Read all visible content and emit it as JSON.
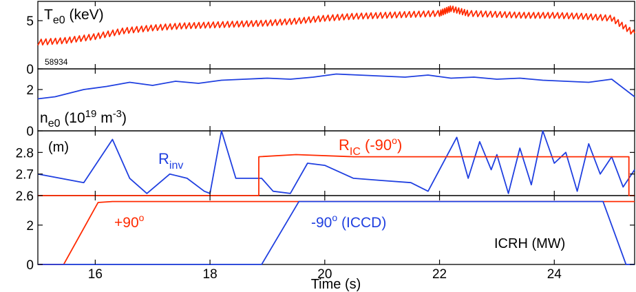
{
  "chart_data": [
    {
      "type": "line",
      "panel": "Te0",
      "xlim": [
        15,
        25.4
      ],
      "ylim": [
        0,
        7
      ],
      "yticks": [
        0,
        5
      ],
      "label_main": "T",
      "label_sub": "e0",
      "label_unit": " (keV)",
      "shot_label": "58934",
      "series": [
        {
          "color": "#ff2a00",
          "x": [
            15.0,
            15.5,
            16.0,
            16.5,
            17.0,
            17.5,
            18.0,
            18.5,
            19.0,
            19.5,
            20.0,
            20.5,
            21.0,
            21.5,
            22.0,
            22.2,
            22.5,
            23.0,
            23.5,
            24.0,
            24.5,
            25.0,
            25.4
          ],
          "y": [
            2.8,
            3.0,
            3.4,
            4.0,
            4.3,
            4.5,
            4.6,
            4.7,
            4.8,
            5.0,
            5.3,
            5.5,
            5.6,
            5.7,
            5.8,
            6.3,
            5.8,
            5.7,
            5.6,
            5.6,
            5.5,
            5.3,
            3.7
          ]
        }
      ]
    },
    {
      "type": "line",
      "panel": "ne0",
      "xlim": [
        15,
        25.4
      ],
      "ylim": [
        0,
        3
      ],
      "yticks": [
        0,
        2
      ],
      "label_main": "n",
      "label_sub": "e0",
      "label_unit_a": " (10",
      "label_sup1": "19",
      "label_unit_b": " m",
      "label_sup2": "-3",
      "label_unit_c": ")",
      "series": [
        {
          "color": "#1f3fe0",
          "x": [
            15.0,
            15.3,
            15.8,
            16.2,
            16.6,
            17.0,
            17.4,
            17.8,
            18.2,
            18.6,
            19.0,
            19.4,
            19.8,
            20.2,
            20.6,
            21.0,
            21.4,
            21.8,
            22.2,
            22.6,
            23.0,
            23.4,
            23.8,
            24.2,
            24.6,
            25.0,
            25.4
          ],
          "y": [
            1.55,
            1.65,
            2.0,
            2.15,
            2.35,
            2.2,
            2.4,
            2.3,
            2.45,
            2.5,
            2.55,
            2.5,
            2.6,
            2.75,
            2.7,
            2.65,
            2.6,
            2.7,
            2.55,
            2.6,
            2.5,
            2.55,
            2.45,
            2.4,
            2.35,
            2.5,
            1.65
          ]
        }
      ]
    },
    {
      "type": "line",
      "panel": "R",
      "xlim": [
        15,
        25.4
      ],
      "ylim": [
        2.6,
        2.9
      ],
      "yticks": [
        2.6,
        2.7,
        2.8
      ],
      "ytick_labels": [
        "2.6",
        "2.7",
        "2.8"
      ],
      "label_unit": "(m)",
      "label_rinv_main": "R",
      "label_rinv_sub": "inv",
      "label_ric_main": "R",
      "label_ric_sub": "IC",
      "label_ric_rest": " (-90",
      "label_ric_deg": "o",
      "label_ric_close": ")",
      "series": [
        {
          "name": "R_inv",
          "color": "#1f3fe0",
          "x": [
            15.0,
            15.8,
            16.3,
            16.6,
            16.9,
            17.3,
            17.6,
            17.9,
            18.0,
            18.2,
            18.45,
            18.9,
            19.1,
            19.4,
            19.7,
            20.0,
            20.5,
            21.0,
            21.5,
            21.8,
            22.1,
            22.3,
            22.5,
            22.7,
            22.9,
            23.0,
            23.2,
            23.4,
            23.6,
            23.8,
            24.0,
            24.2,
            24.4,
            24.6,
            24.8,
            25.0,
            25.2,
            25.4
          ],
          "y": [
            2.7,
            2.66,
            2.86,
            2.68,
            2.61,
            2.7,
            2.68,
            2.62,
            2.61,
            2.9,
            2.68,
            2.68,
            2.62,
            2.61,
            2.75,
            2.74,
            2.68,
            2.67,
            2.66,
            2.62,
            2.77,
            2.87,
            2.68,
            2.85,
            2.72,
            2.79,
            2.61,
            2.82,
            2.65,
            2.9,
            2.75,
            2.8,
            2.62,
            2.84,
            2.7,
            2.78,
            2.64,
            2.72
          ]
        },
        {
          "name": "R_IC",
          "color": "#ff2a00",
          "x": [
            15.0,
            18.85,
            18.85,
            19.5,
            20.5,
            21.5,
            22.5,
            23.5,
            24.5,
            25.3,
            25.3,
            25.4
          ],
          "y": [
            2.6,
            2.6,
            2.78,
            2.79,
            2.78,
            2.78,
            2.78,
            2.78,
            2.78,
            2.78,
            2.6,
            2.6
          ]
        }
      ]
    },
    {
      "type": "line",
      "panel": "ICRH",
      "xlim": [
        15,
        25.4
      ],
      "ylim": [
        0,
        3.5
      ],
      "yticks": [
        0,
        2
      ],
      "label_main": "ICRH (MW)",
      "label_p90": "+90",
      "label_p90_deg": "o",
      "label_m90": "-90",
      "label_m90_deg": "o",
      "label_m90_rest": " (ICCD)",
      "series": [
        {
          "name": "+90",
          "color": "#ff2a00",
          "x": [
            15.0,
            15.45,
            16.05,
            16.3,
            17.0,
            18.0,
            19.0,
            20.0,
            21.0,
            22.0,
            23.0,
            24.0,
            24.8,
            25.4
          ],
          "y": [
            0,
            0,
            3.15,
            3.2,
            3.2,
            3.2,
            3.2,
            3.2,
            3.2,
            3.2,
            3.2,
            3.2,
            3.2,
            3.2
          ]
        },
        {
          "name": "-90",
          "color": "#1f3fe0",
          "x": [
            15.0,
            18.9,
            19.55,
            20.0,
            21.0,
            22.0,
            23.0,
            24.0,
            24.85,
            25.25,
            25.4
          ],
          "y": [
            0,
            0,
            3.2,
            3.2,
            3.2,
            3.2,
            3.2,
            3.2,
            3.2,
            0,
            0
          ]
        }
      ]
    }
  ],
  "x_axis": {
    "ticks": [
      16,
      18,
      20,
      22,
      24
    ],
    "tick_labels": [
      "16",
      "18",
      "20",
      "22",
      "24"
    ],
    "label": "Time (s)"
  }
}
